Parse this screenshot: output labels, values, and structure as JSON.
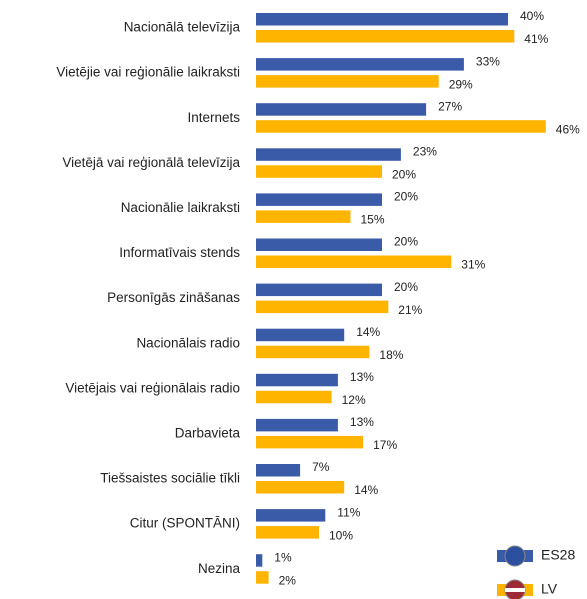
{
  "chart_data": {
    "type": "bar",
    "orientation": "horizontal",
    "categories": [
      "Nacionālā televīzija",
      "Vietējie vai reģionālie laikraksti",
      "Internets",
      "Vietējā vai reģionālā televīzija",
      "Nacionālie laikraksti",
      "Informatīvais stends",
      "Personīgās zināšanas",
      "Nacionālais radio",
      "Vietējais vai reģionālais radio",
      "Darbavieta",
      "Tiešsaistes sociālie tīkli",
      "Citur (SPONTĀNI)",
      "Nezina"
    ],
    "series": [
      {
        "name": "ES28",
        "color": "#3a5ca8",
        "values": [
          40,
          33,
          27,
          23,
          20,
          20,
          20,
          14,
          13,
          13,
          7,
          11,
          1
        ],
        "value_labels": [
          "40%",
          "33%",
          "27%",
          "23%",
          "20%",
          "20%",
          "20%",
          "14%",
          "13%",
          "13%",
          "7%",
          "11%",
          "1%"
        ]
      },
      {
        "name": "LV",
        "color": "#ffb400",
        "values": [
          41,
          29,
          46,
          20,
          15,
          31,
          21,
          18,
          12,
          17,
          14,
          10,
          2
        ],
        "value_labels": [
          "41%",
          "29%",
          "46%",
          "20%",
          "15%",
          "31%",
          "21%",
          "18%",
          "12%",
          "17%",
          "14%",
          "10%",
          "2%"
        ]
      }
    ]
  }
}
